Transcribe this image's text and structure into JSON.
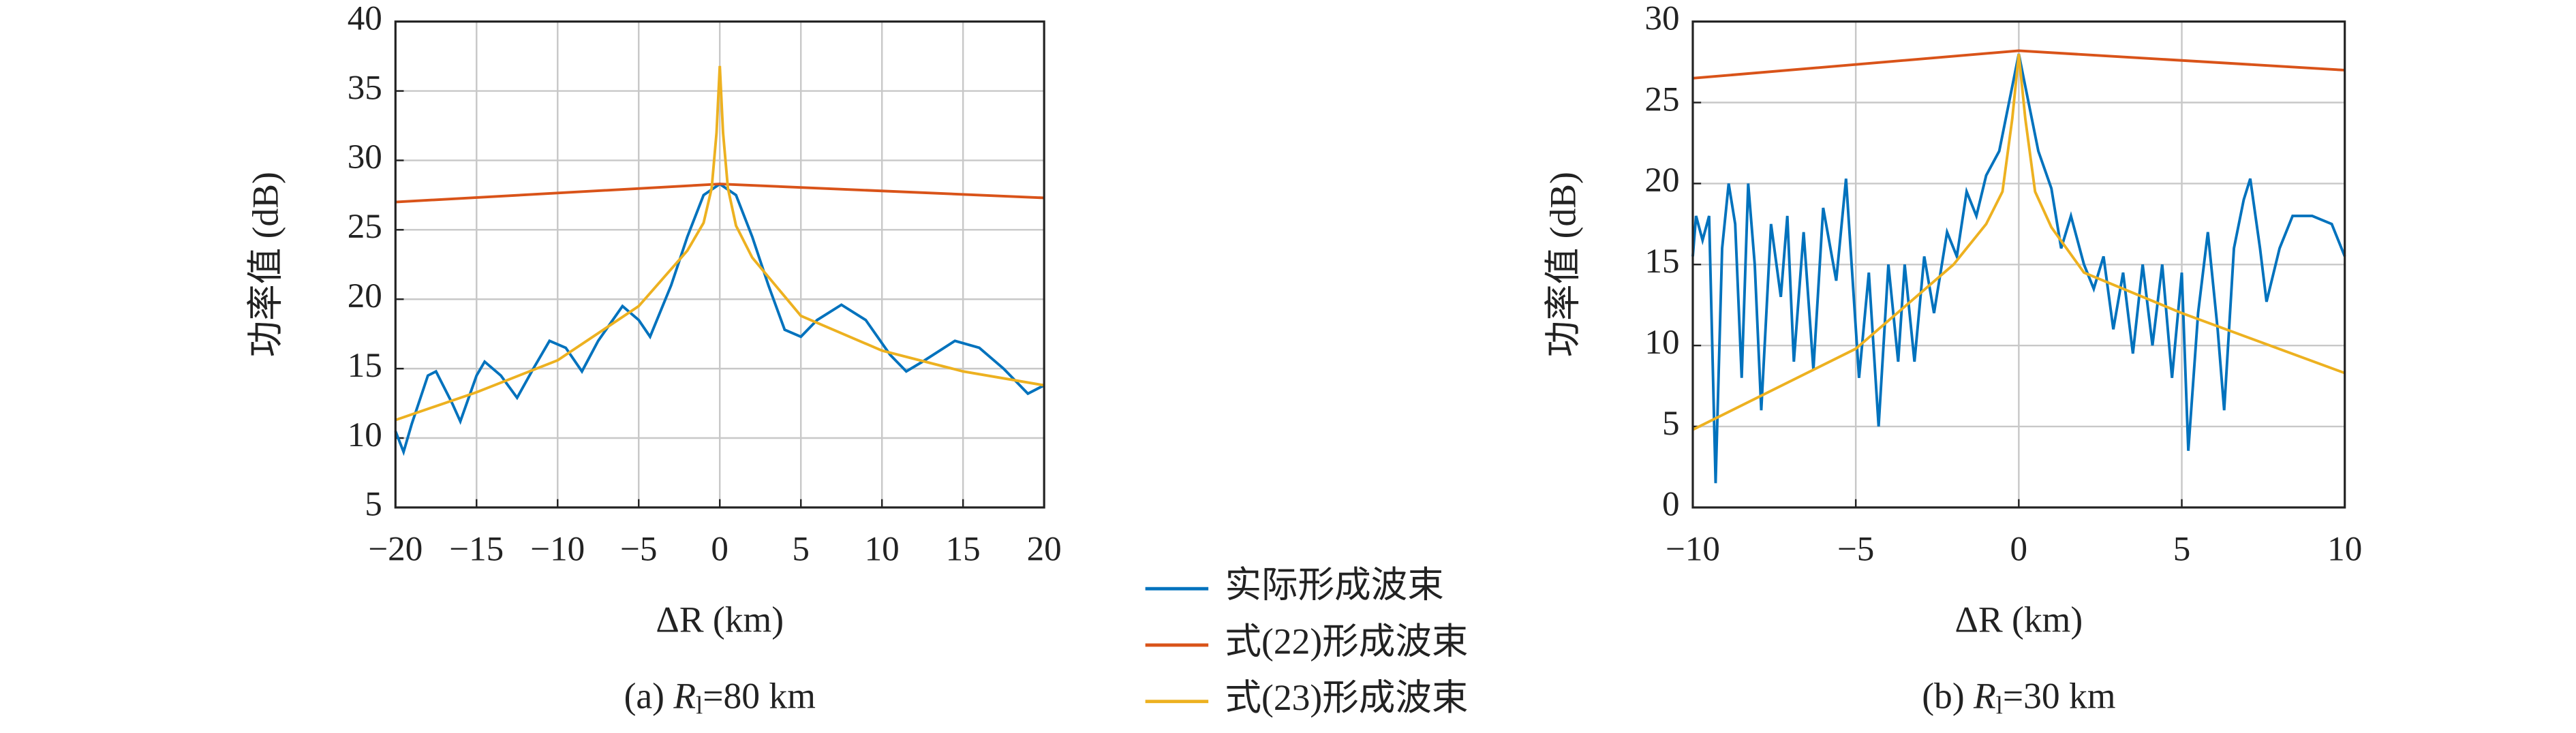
{
  "chart_data": [
    {
      "type": "line",
      "y_label": "功率值 (dB)",
      "x_label": "ΔR (km)",
      "caption": [
        "(a) ",
        "R",
        "l",
        "=80 km"
      ],
      "xlim": [
        -20,
        20
      ],
      "ylim": [
        5,
        40
      ],
      "xticks": [
        {
          "value": -20,
          "label": "−20"
        },
        {
          "value": -15,
          "label": "−15"
        },
        {
          "value": -10,
          "label": "−10"
        },
        {
          "value": -5,
          "label": "−5"
        },
        0,
        5,
        10,
        15,
        20
      ],
      "yticks": [
        5,
        10,
        15,
        20,
        25,
        30,
        35,
        40
      ],
      "grid": true,
      "series": [
        {
          "name": "实际形成波束",
          "color": "#0072bd",
          "x": [
            -20,
            -19.5,
            -19,
            -18,
            -17.5,
            -16.5,
            -16,
            -15,
            -14.5,
            -13.5,
            -12.5,
            -11.5,
            -10.5,
            -9.5,
            -8.5,
            -7.5,
            -6,
            -5,
            -4.3,
            -3,
            -2,
            -1,
            0,
            1,
            2,
            3,
            4,
            5,
            6,
            7.5,
            9,
            10.5,
            11.5,
            12.5,
            14.5,
            16,
            17.5,
            19,
            20
          ],
          "values": [
            10.5,
            9,
            11,
            14.5,
            14.8,
            12.5,
            11.2,
            14.5,
            15.5,
            14.5,
            12.9,
            15,
            17,
            16.5,
            14.8,
            17,
            19.5,
            18.5,
            17.3,
            21,
            24.5,
            27.5,
            28.3,
            27.5,
            24.5,
            21,
            17.8,
            17.3,
            18.5,
            19.6,
            18.5,
            16,
            14.8,
            15.5,
            17,
            16.5,
            15,
            13.2,
            13.8
          ]
        },
        {
          "name": "式(22)形成波束",
          "color": "#d95319",
          "x": [
            -20,
            0,
            20
          ],
          "values": [
            27,
            28.3,
            27.3
          ]
        },
        {
          "name": "式(23)形成波束",
          "color": "#edb120",
          "x": [
            -20,
            -15,
            -10,
            -5,
            -2,
            -1,
            -0.5,
            -0.2,
            0,
            0.2,
            0.5,
            1,
            2,
            5,
            10,
            15,
            20
          ],
          "values": [
            11.3,
            13.3,
            15.6,
            19.5,
            23.5,
            25.5,
            28,
            32,
            36.8,
            32,
            28,
            25.3,
            23,
            18.8,
            16.3,
            14.8,
            13.8
          ]
        }
      ]
    },
    {
      "type": "line",
      "y_label": "功率值 (dB)",
      "x_label": "ΔR (km)",
      "caption": [
        "(b) ",
        "R",
        "l",
        "=30 km"
      ],
      "xlim": [
        -10,
        10
      ],
      "ylim": [
        0,
        30
      ],
      "xticks": [
        {
          "value": -10,
          "label": "−10"
        },
        {
          "value": -5,
          "label": "−5"
        },
        0,
        5,
        10
      ],
      "yticks": [
        0,
        5,
        10,
        15,
        20,
        25,
        30
      ],
      "grid": true,
      "series": [
        {
          "name": "实际形成波束",
          "color": "#0072bd",
          "x": [
            -10,
            -9.9,
            -9.7,
            -9.5,
            -9.3,
            -9.1,
            -8.9,
            -8.7,
            -8.5,
            -8.3,
            -8.1,
            -7.9,
            -7.6,
            -7.3,
            -7.1,
            -6.9,
            -6.6,
            -6.3,
            -6,
            -5.6,
            -5.3,
            -4.9,
            -4.6,
            -4.3,
            -4,
            -3.7,
            -3.5,
            -3.2,
            -2.9,
            -2.6,
            -2.2,
            -1.9,
            -1.6,
            -1.3,
            -1,
            -0.6,
            0,
            0.6,
            1,
            1.3,
            1.6,
            2,
            2.3,
            2.6,
            2.9,
            3.2,
            3.5,
            3.8,
            4.1,
            4.4,
            4.7,
            5,
            5.2,
            5.5,
            5.8,
            6.1,
            6.3,
            6.6,
            6.9,
            7.1,
            7.4,
            7.6,
            8,
            8.4,
            9,
            9.6,
            10
          ],
          "values": [
            15.5,
            18,
            16.5,
            18,
            1.5,
            16,
            20,
            17.5,
            8,
            20,
            15,
            6,
            17.5,
            13,
            18,
            9,
            17,
            8.5,
            18.5,
            14,
            20.3,
            8,
            14.5,
            5,
            15,
            9,
            15,
            9,
            15.5,
            12,
            17,
            15.5,
            19.5,
            18,
            20.5,
            22,
            28,
            22,
            19.7,
            16,
            18,
            15,
            13.5,
            15.5,
            11,
            14.5,
            9.5,
            15,
            10,
            15,
            8,
            14.5,
            3.5,
            12,
            17,
            11,
            6,
            16,
            19,
            20.3,
            16,
            12.7,
            16,
            18,
            18,
            17.5,
            15.5
          ]
        },
        {
          "name": "式(22)形成波束",
          "color": "#d95319",
          "x": [
            -10,
            0,
            10
          ],
          "values": [
            26.5,
            28.2,
            27
          ]
        },
        {
          "name": "式(23)形成波束",
          "color": "#edb120",
          "x": [
            -10,
            -5,
            -2,
            -1,
            -0.5,
            -0.2,
            0,
            0.2,
            0.5,
            1,
            2,
            5,
            10
          ],
          "values": [
            4.8,
            9.8,
            15,
            17.5,
            19.5,
            24,
            28,
            24,
            19.5,
            17.3,
            14.5,
            12,
            8.3
          ]
        }
      ]
    }
  ]
}
